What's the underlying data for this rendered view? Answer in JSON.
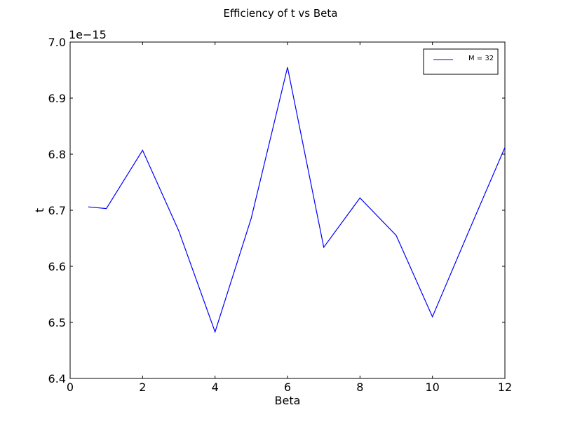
{
  "chart_data": {
    "type": "line",
    "title": "Efficiency of t vs Beta",
    "xlabel": "Beta",
    "ylabel": "t",
    "y_offset_text": "1e−15",
    "xlim": [
      0,
      12
    ],
    "ylim": [
      6.4,
      7.0
    ],
    "y_scale_factor": 1e-15,
    "x_ticks": [
      0,
      2,
      4,
      6,
      8,
      10,
      12
    ],
    "x_tick_labels": [
      "0",
      "2",
      "4",
      "6",
      "8",
      "10",
      "12"
    ],
    "y_ticks": [
      6.4,
      6.5,
      6.6,
      6.7,
      6.8,
      6.9,
      7.0
    ],
    "y_tick_labels": [
      "6.4",
      "6.5",
      "6.6",
      "6.7",
      "6.8",
      "6.9",
      "7.0"
    ],
    "grid": false,
    "legend_position": "top-right",
    "series": [
      {
        "name": "M = 32",
        "color": "#0000ff",
        "x": [
          0.5,
          1,
          2,
          3,
          4,
          5,
          6,
          7,
          8,
          9,
          10,
          11,
          12
        ],
        "y": [
          6.706,
          6.703,
          6.807,
          6.663,
          6.483,
          6.686,
          6.955,
          6.634,
          6.722,
          6.655,
          6.51,
          6.662,
          6.812
        ]
      }
    ]
  }
}
